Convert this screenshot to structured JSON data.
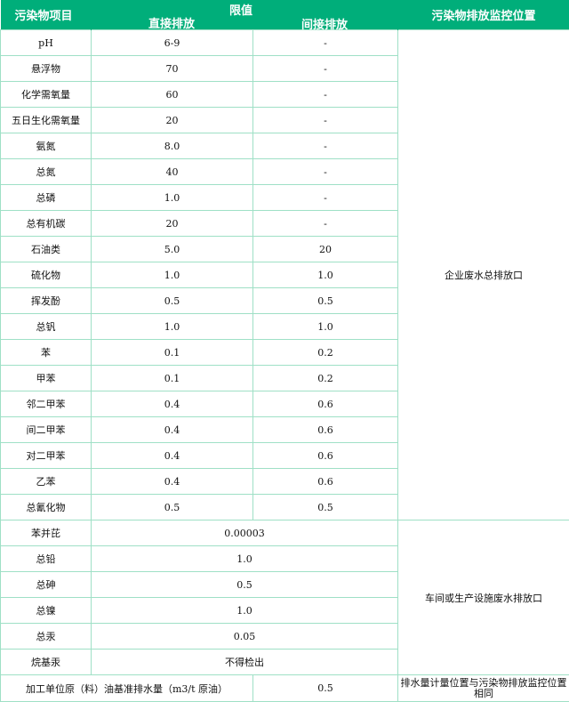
{
  "header": {
    "item": "污染物项目",
    "limit": "限值",
    "direct": "直接排放",
    "indirect": "间接排放",
    "location": "污染物排放监控位置"
  },
  "group1": {
    "location": "企业废水总排放口",
    "rows": [
      [
        "pH",
        "6-9",
        "-"
      ],
      [
        "悬浮物",
        "70",
        "-"
      ],
      [
        "化学需氧量",
        "60",
        "-"
      ],
      [
        "五日生化需氧量",
        "20",
        "-"
      ],
      [
        "氨氮",
        "8.0",
        "-"
      ],
      [
        "总氮",
        "40",
        "-"
      ],
      [
        "总磷",
        "1.0",
        "-"
      ],
      [
        "总有机碳",
        "20",
        "-"
      ],
      [
        "石油类",
        "5.0",
        "20"
      ],
      [
        "硫化物",
        "1.0",
        "1.0"
      ],
      [
        "挥发酚",
        "0.5",
        "0.5"
      ],
      [
        "总钒",
        "1.0",
        "1.0"
      ],
      [
        "苯",
        "0.1",
        "0.2"
      ],
      [
        "甲苯",
        "0.1",
        "0.2"
      ],
      [
        "邻二甲苯",
        "0.4",
        "0.6"
      ],
      [
        "间二甲苯",
        "0.4",
        "0.6"
      ],
      [
        "对二甲苯",
        "0.4",
        "0.6"
      ],
      [
        "乙苯",
        "0.4",
        "0.6"
      ],
      [
        "总氰化物",
        "0.5",
        "0.5"
      ]
    ]
  },
  "group2": {
    "location": "车间或生产设施废水排放口",
    "rows": [
      [
        "苯并芘",
        "0.00003"
      ],
      [
        "总铅",
        "1.0"
      ],
      [
        "总砷",
        "0.5"
      ],
      [
        "总镍",
        "1.0"
      ],
      [
        "总汞",
        "0.05"
      ],
      [
        "烷基汞",
        "不得检出"
      ]
    ]
  },
  "last": {
    "item": "加工单位原（料）油基准排水量（m3/t 原油）",
    "value": "0.5",
    "location": "排水量计量位置与污染物排放监控位置相同"
  }
}
